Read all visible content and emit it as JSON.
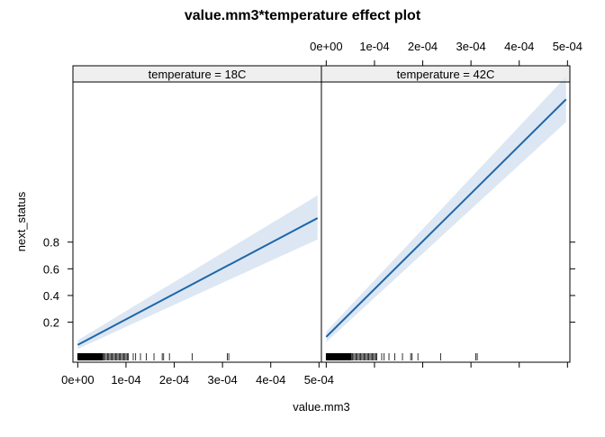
{
  "chart_data": {
    "type": "line",
    "title": "value.mm3*temperature effect plot",
    "xlabel": "value.mm3",
    "ylabel": "next_status",
    "x_ticks": [
      "0e+00",
      "1e-04",
      "2e-04",
      "3e-04",
      "4e-04",
      "5e-04"
    ],
    "y_ticks": [
      "0.2",
      "0.4",
      "0.6",
      "0.8"
    ],
    "xlim": [
      -1e-05,
      0.000505
    ],
    "ylim": [
      -0.1,
      2.0
    ],
    "panels": [
      {
        "strip": "temperature = 18C",
        "x": [
          0,
          0.000497
        ],
        "fit": [
          0.03,
          0.98
        ],
        "lower": [
          0.0,
          0.82
        ],
        "upper": [
          0.065,
          1.15
        ],
        "color": "#1f66a8",
        "band_color": "#dce7f3"
      },
      {
        "strip": "temperature = 42C",
        "x": [
          0,
          0.000497
        ],
        "fit": [
          0.09,
          1.87
        ],
        "lower": [
          0.05,
          1.7
        ],
        "upper": [
          0.13,
          2.04
        ],
        "color": "#1f66a8",
        "band_color": "#dce7f3"
      }
    ],
    "rug": {
      "dense_range": [
        0.0,
        5.2e-05
      ],
      "medium_range": [
        5.2e-05,
        0.000105
      ],
      "sparse_values": [
        0.000115,
        0.00012,
        0.00013,
        0.000142,
        0.000158,
        0.000175,
        0.000178,
        0.00019,
        0.000237,
        0.00031,
        0.000313
      ]
    }
  }
}
